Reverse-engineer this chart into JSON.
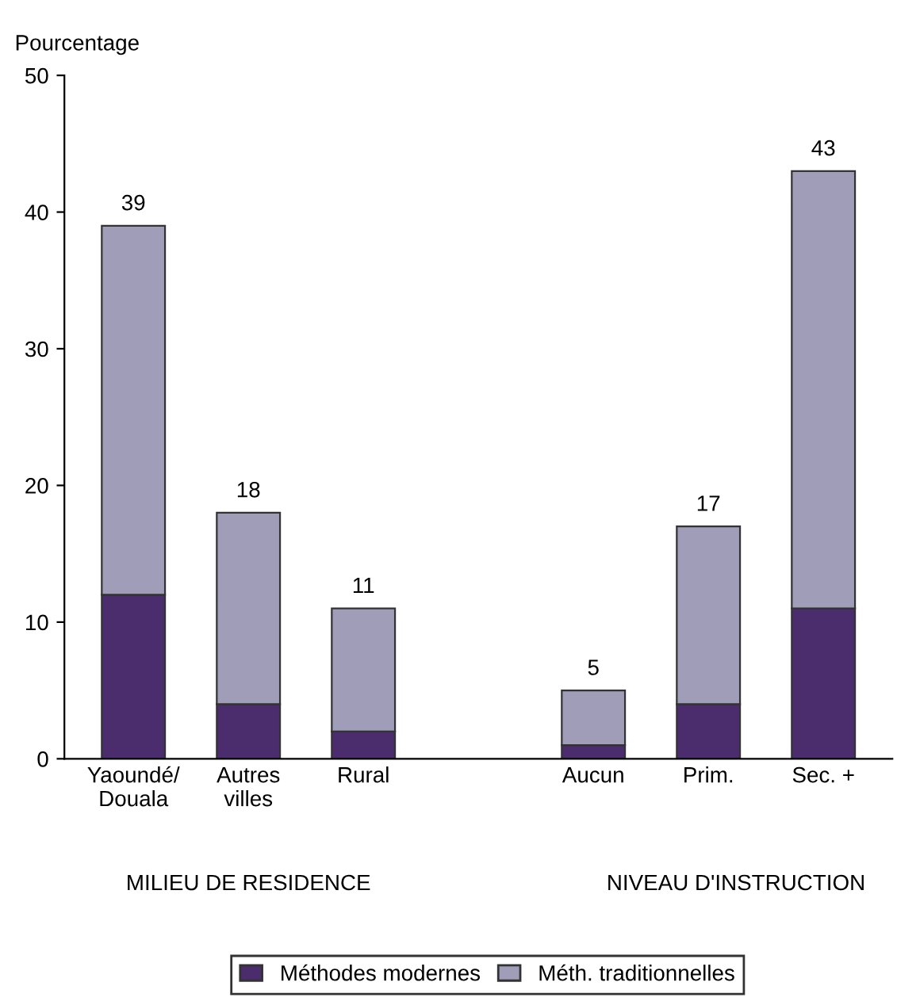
{
  "chart_data": {
    "type": "bar",
    "stacked": true,
    "ylabel": "Pourcentage",
    "categories": [
      "Yaoundé/\nDouala",
      "Autres\nvilles",
      "Rural",
      null,
      "Aucun",
      "Prim.",
      "Sec. +"
    ],
    "series": [
      {
        "name": "Méthodes modernes",
        "color": "#4b2d6e",
        "values": [
          12,
          4,
          2,
          null,
          1,
          4,
          11
        ]
      },
      {
        "name": "Méth. traditionnelles",
        "color": "#9f9db8",
        "values": [
          27,
          14,
          9,
          null,
          4,
          13,
          32
        ]
      }
    ],
    "totals": [
      "39",
      "18",
      "11",
      null,
      "5",
      "17",
      "43"
    ],
    "ylim": [
      0,
      50
    ],
    "yticks": [
      0,
      10,
      20,
      30,
      40,
      50
    ],
    "grid": false,
    "legend": "bottom",
    "annotations": [
      "MILIEU DE RESIDENCE",
      "NIVEAU D'INSTRUCTION"
    ]
  }
}
